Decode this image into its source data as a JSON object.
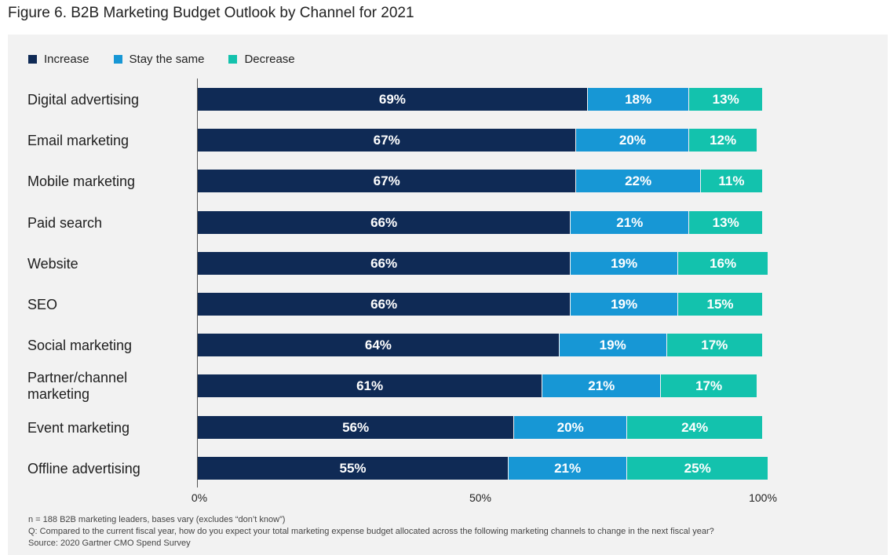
{
  "title": "Figure 6. B2B Marketing Budget Outlook by Channel for 2021",
  "legend": [
    {
      "label": "Increase",
      "color": "#0f2a55"
    },
    {
      "label": "Stay the same",
      "color": "#1797d5"
    },
    {
      "label": "Decrease",
      "color": "#13c2ad"
    }
  ],
  "axis_ticks": [
    "0%",
    "50%",
    "100%"
  ],
  "notes": [
    "n = 188 B2B marketing leaders, bases vary (excludes “don’t know”)",
    "Q: Compared to the current fiscal year, how do you expect your total marketing expense budget allocated across the following marketing channels to change in the next fiscal year?",
    "Source: 2020 Gartner CMO Spend Survey"
  ],
  "chart_data": {
    "type": "bar",
    "orientation": "horizontal",
    "stacked": true,
    "title": "Figure 6. B2B Marketing Budget Outlook by Channel for 2021",
    "categories": [
      "Digital advertising",
      "Email marketing",
      "Mobile marketing",
      "Paid search",
      "Website",
      "SEO",
      "Social marketing",
      "Partner/channel marketing",
      "Event marketing",
      "Offline advertising"
    ],
    "series": [
      {
        "name": "Increase",
        "values": [
          69,
          67,
          67,
          66,
          66,
          66,
          64,
          61,
          56,
          55
        ]
      },
      {
        "name": "Stay the same",
        "values": [
          18,
          20,
          22,
          21,
          19,
          19,
          19,
          21,
          20,
          21
        ]
      },
      {
        "name": "Decrease",
        "values": [
          13,
          12,
          11,
          13,
          16,
          15,
          17,
          17,
          24,
          25
        ]
      }
    ],
    "xlim": [
      0,
      100
    ],
    "value_suffix": "%",
    "grid": false,
    "legend_position": "top-left"
  }
}
